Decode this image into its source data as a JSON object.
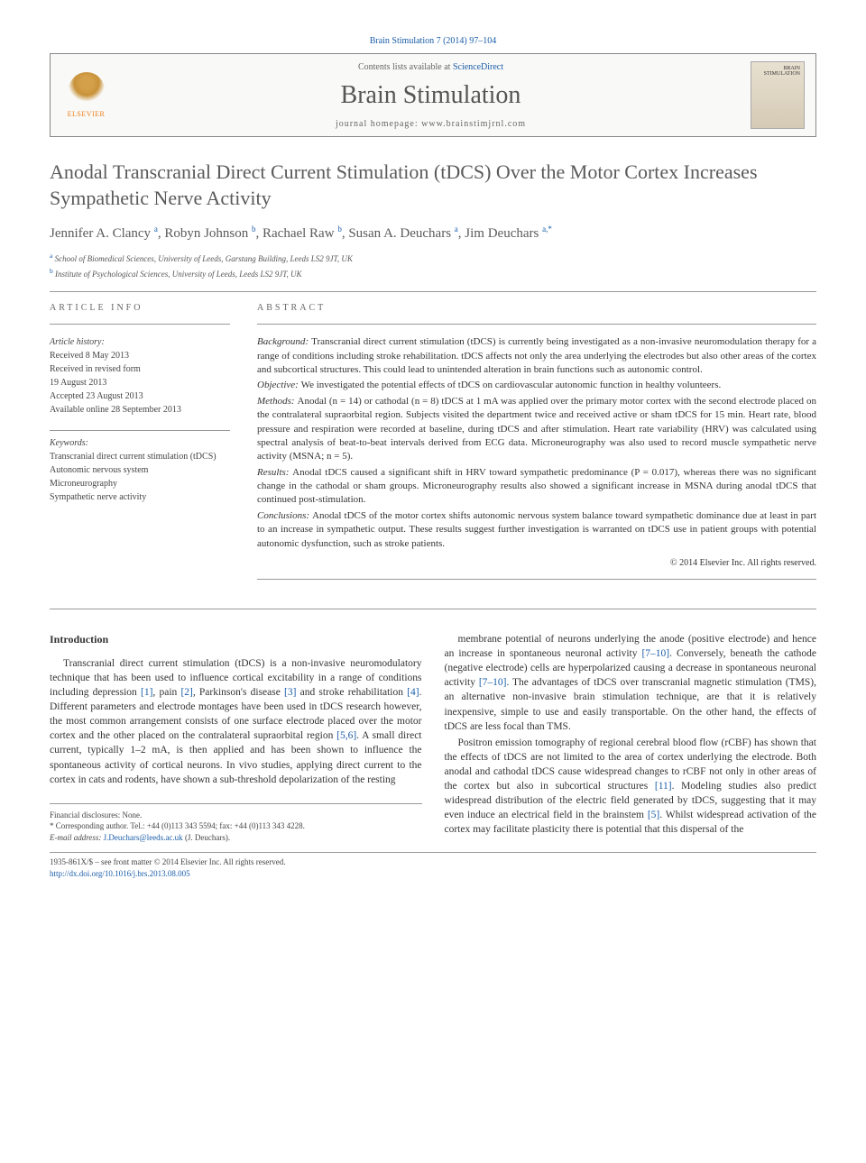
{
  "citation": "Brain Stimulation 7 (2014) 97–104",
  "header": {
    "contents_prefix": "Contents lists available at ",
    "contents_link": "ScienceDirect",
    "journal_title": "Brain Stimulation",
    "homepage_prefix": "journal homepage: ",
    "homepage_url": "www.brainstimjrnl.com",
    "elsevier_label": "ELSEVIER",
    "cover_text": "BRAIN STIMULATION"
  },
  "title": "Anodal Transcranial Direct Current Stimulation (tDCS) Over the Motor Cortex Increases Sympathetic Nerve Activity",
  "authors_html": "Jennifer A. Clancy|a|, Robyn Johnson|b|, Rachael Raw|b|, Susan A. Deuchars|a|, Jim Deuchars|a,*",
  "authors": [
    {
      "name": "Jennifer A. Clancy",
      "sup": "a"
    },
    {
      "name": "Robyn Johnson",
      "sup": "b"
    },
    {
      "name": "Rachael Raw",
      "sup": "b"
    },
    {
      "name": "Susan A. Deuchars",
      "sup": "a"
    },
    {
      "name": "Jim Deuchars",
      "sup": "a,",
      "star": true
    }
  ],
  "affiliations": [
    {
      "sup": "a",
      "text": "School of Biomedical Sciences, University of Leeds, Garstang Building, Leeds LS2 9JT, UK"
    },
    {
      "sup": "b",
      "text": "Institute of Psychological Sciences, University of Leeds, Leeds LS2 9JT, UK"
    }
  ],
  "article_info": {
    "heading": "ARTICLE INFO",
    "history_label": "Article history:",
    "history": [
      "Received 8 May 2013",
      "Received in revised form",
      "19 August 2013",
      "Accepted 23 August 2013",
      "Available online 28 September 2013"
    ],
    "keywords_label": "Keywords:",
    "keywords": [
      "Transcranial direct current stimulation (tDCS)",
      "Autonomic nervous system",
      "Microneurography",
      "Sympathetic nerve activity"
    ]
  },
  "abstract": {
    "heading": "ABSTRACT",
    "sections": [
      {
        "label": "Background:",
        "text": "Transcranial direct current stimulation (tDCS) is currently being investigated as a non-invasive neuromodulation therapy for a range of conditions including stroke rehabilitation. tDCS affects not only the area underlying the electrodes but also other areas of the cortex and subcortical structures. This could lead to unintended alteration in brain functions such as autonomic control."
      },
      {
        "label": "Objective:",
        "text": "We investigated the potential effects of tDCS on cardiovascular autonomic function in healthy volunteers."
      },
      {
        "label": "Methods:",
        "text": "Anodal (n = 14) or cathodal (n = 8) tDCS at 1 mA was applied over the primary motor cortex with the second electrode placed on the contralateral supraorbital region. Subjects visited the department twice and received active or sham tDCS for 15 min. Heart rate, blood pressure and respiration were recorded at baseline, during tDCS and after stimulation. Heart rate variability (HRV) was calculated using spectral analysis of beat-to-beat intervals derived from ECG data. Microneurography was also used to record muscle sympathetic nerve activity (MSNA; n = 5)."
      },
      {
        "label": "Results:",
        "text": "Anodal tDCS caused a significant shift in HRV toward sympathetic predominance (P = 0.017), whereas there was no significant change in the cathodal or sham groups. Microneurography results also showed a significant increase in MSNA during anodal tDCS that continued post-stimulation."
      },
      {
        "label": "Conclusions:",
        "text": "Anodal tDCS of the motor cortex shifts autonomic nervous system balance toward sympathetic dominance due at least in part to an increase in sympathetic output. These results suggest further investigation is warranted on tDCS use in patient groups with potential autonomic dysfunction, such as stroke patients."
      }
    ],
    "copyright": "© 2014 Elsevier Inc. All rights reserved."
  },
  "introduction": {
    "heading": "Introduction",
    "col1": "Transcranial direct current stimulation (tDCS) is a non-invasive neuromodulatory technique that has been used to influence cortical excitability in a range of conditions including depression [1], pain [2], Parkinson's disease [3] and stroke rehabilitation [4]. Different parameters and electrode montages have been used in tDCS research however, the most common arrangement consists of one surface electrode placed over the motor cortex and the other placed on the contralateral supraorbital region [5,6]. A small direct current, typically 1–2 mA, is then applied and has been shown to influence the spontaneous activity of cortical neurons. In vivo studies, applying direct current to the cortex in cats and rodents, have shown a sub-threshold depolarization of the resting",
    "col2_p1": "membrane potential of neurons underlying the anode (positive electrode) and hence an increase in spontaneous neuronal activity [7–10]. Conversely, beneath the cathode (negative electrode) cells are hyperpolarized causing a decrease in spontaneous neuronal activity [7–10]. The advantages of tDCS over transcranial magnetic stimulation (TMS), an alternative non-invasive brain stimulation technique, are that it is relatively inexpensive, simple to use and easily transportable. On the other hand, the effects of tDCS are less focal than TMS.",
    "col2_p2": "Positron emission tomography of regional cerebral blood flow (rCBF) has shown that the effects of tDCS are not limited to the area of cortex underlying the electrode. Both anodal and cathodal tDCS cause widespread changes to rCBF not only in other areas of the cortex but also in subcortical structures [11]. Modeling studies also predict widespread distribution of the electric field generated by tDCS, suggesting that it may even induce an electrical field in the brainstem [5]. Whilst widespread activation of the cortex may facilitate plasticity there is potential that this dispersal of the"
  },
  "footnotes": {
    "disclosure": "Financial disclosures: None.",
    "corr_label": "* Corresponding author. Tel.: +44 (0)113 343 5594; fax: +44 (0)113 343 4228.",
    "email_label": "E-mail address:",
    "email": "J.Deuchars@leeds.ac.uk",
    "email_suffix": "(J. Deuchars)."
  },
  "bottom": {
    "line1": "1935-861X/$ – see front matter © 2014 Elsevier Inc. All rights reserved.",
    "doi": "http://dx.doi.org/10.1016/j.brs.2013.08.005"
  },
  "colors": {
    "link": "#1a5da8",
    "heading_gray": "#5a5a5a",
    "elsevier_orange": "#ed7d1a"
  }
}
